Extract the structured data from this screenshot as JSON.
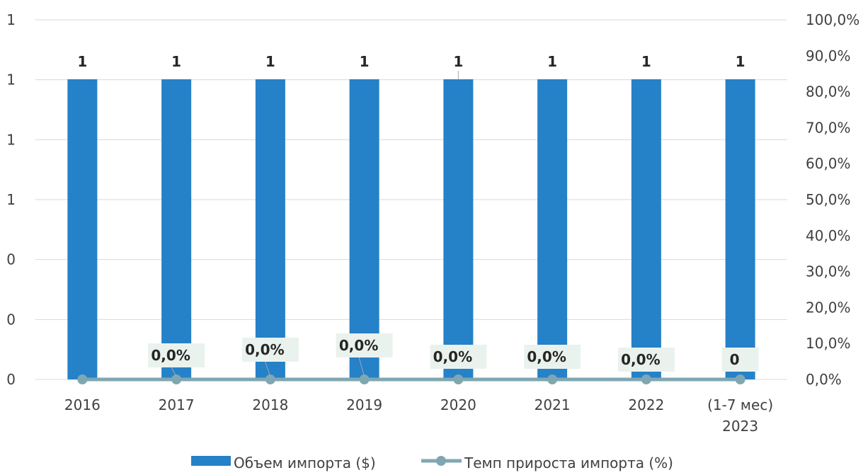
{
  "chart_data": {
    "type": "bar",
    "categories": [
      "2016",
      "2017",
      "2018",
      "2019",
      "2020",
      "2021",
      "2022",
      "(1-7 мес) 2023"
    ],
    "category_lines": [
      [
        "2016"
      ],
      [
        "2017"
      ],
      [
        "2018"
      ],
      [
        "2019"
      ],
      [
        "2020"
      ],
      [
        "2021"
      ],
      [
        "2022"
      ],
      [
        "(1-7 мес)",
        "2023"
      ]
    ],
    "series": [
      {
        "name": "Объем импорта ($)",
        "type": "bar",
        "axis": "left",
        "values": [
          1,
          1,
          1,
          1,
          1,
          1,
          1,
          1
        ],
        "data_labels": [
          "1",
          "1",
          "1",
          "1",
          "1",
          "1",
          "1",
          "1"
        ],
        "color": "#2581C8"
      },
      {
        "name": "Темп прироста импорта (%)",
        "type": "line",
        "axis": "right",
        "values": [
          0,
          0,
          0,
          0,
          0,
          0,
          0,
          0
        ],
        "data_labels": [
          "",
          "0,0%",
          "0,0%",
          "0,0%",
          "0,0%",
          "0,0%",
          "0,0%",
          "0"
        ],
        "color": "#7FA7B2",
        "label_bg": "#EAF2EE"
      }
    ],
    "left_axis": {
      "ticks": [
        "0",
        "0",
        "0",
        "1",
        "1",
        "1",
        "1"
      ]
    },
    "right_axis": {
      "min": 0,
      "max": 100,
      "unit": "%",
      "ticks": [
        "0,0%",
        "10,0%",
        "20,0%",
        "30,0%",
        "40,0%",
        "50,0%",
        "60,0%",
        "70,0%",
        "80,0%",
        "90,0%",
        "100,0%"
      ]
    },
    "grid": true,
    "legend": "bottom",
    "gridline_color": "#D9D9D9"
  }
}
